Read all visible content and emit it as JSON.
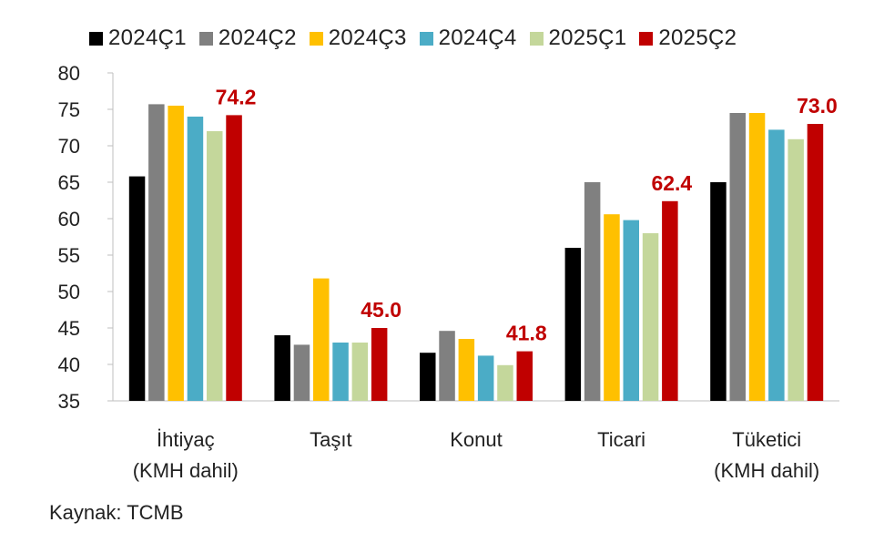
{
  "chart_data": {
    "type": "bar",
    "categories": [
      [
        "İhtiyaç",
        "(KMH dahil)"
      ],
      [
        "Taşıt"
      ],
      [
        "Konut"
      ],
      [
        "Ticari"
      ],
      [
        "Tüketici",
        "(KMH dahil)"
      ]
    ],
    "series": [
      {
        "name": "2024Ç1",
        "color": "#000000",
        "values": [
          65.8,
          44.0,
          41.6,
          56.0,
          65.0
        ]
      },
      {
        "name": "2024Ç2",
        "color": "#808080",
        "values": [
          75.7,
          42.7,
          44.6,
          65.0,
          74.5
        ]
      },
      {
        "name": "2024Ç3",
        "color": "#FFC000",
        "values": [
          75.5,
          51.8,
          43.5,
          60.6,
          74.5
        ]
      },
      {
        "name": "2024Ç4",
        "color": "#4BACC6",
        "values": [
          74.0,
          43.0,
          41.2,
          59.8,
          72.2
        ]
      },
      {
        "name": "2025Ç1",
        "color": "#C4D79B",
        "values": [
          72.0,
          43.0,
          39.9,
          58.0,
          70.9
        ]
      },
      {
        "name": "2025Ç2",
        "color": "#C00000",
        "values": [
          74.2,
          45.0,
          41.8,
          62.4,
          73.0
        ]
      }
    ],
    "data_labels": [
      "74.2",
      "45.0",
      "41.8",
      "62.4",
      "73.0"
    ],
    "data_label_color": "#C00000",
    "ylim": [
      35,
      80
    ],
    "yticks": [
      35,
      40,
      45,
      50,
      55,
      60,
      65,
      70,
      75,
      80
    ],
    "grid": false,
    "legend_position": "top"
  },
  "source": "Kaynak: TCMB"
}
